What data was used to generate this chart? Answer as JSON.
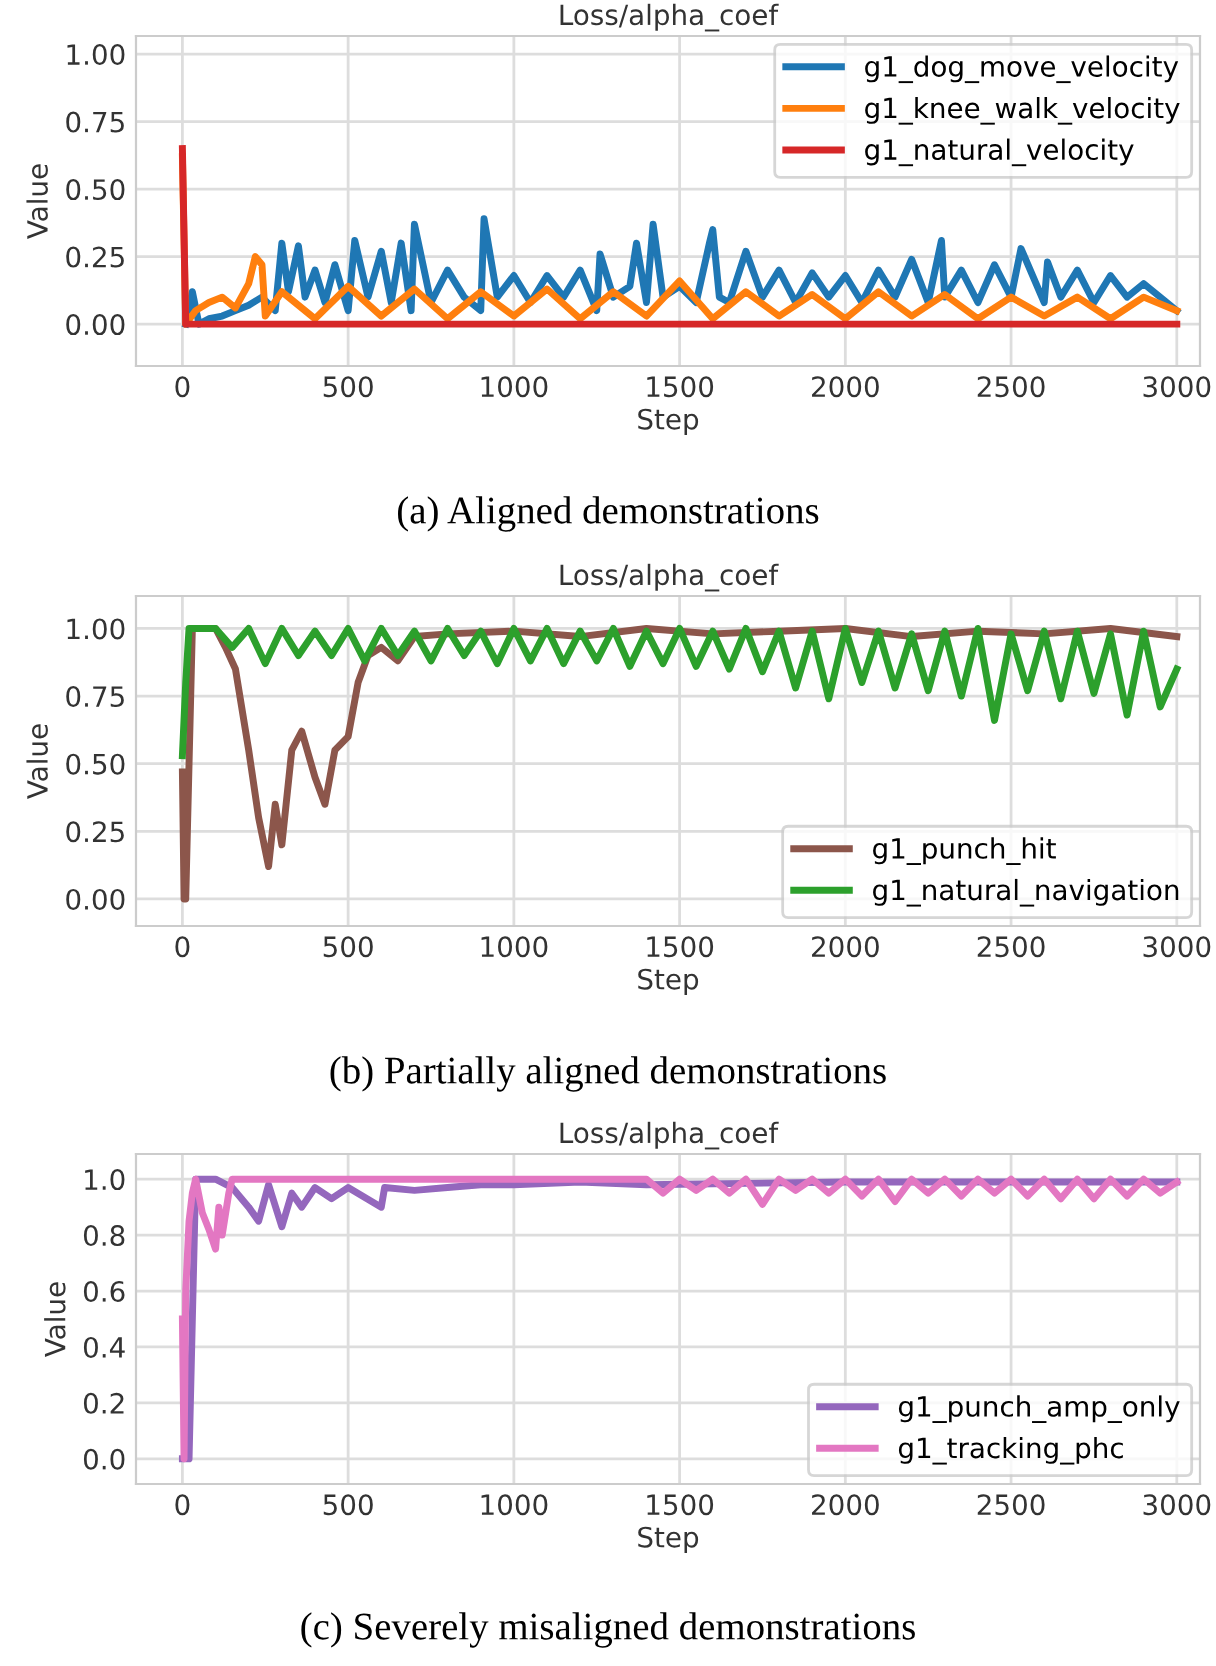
{
  "chart_data": [
    {
      "type": "line",
      "title": "Loss/alpha_coef",
      "xlabel": "Step",
      "ylabel": "Value",
      "xlim": [
        -140,
        3070
      ],
      "ylim": [
        -0.155,
        1.067
      ],
      "xticks": [
        0,
        500,
        1000,
        1500,
        2000,
        2500,
        3000
      ],
      "yticks": [
        {
          "value": 0,
          "label": "0.00"
        },
        {
          "value": 0.25,
          "label": "0.25"
        },
        {
          "value": 0.5,
          "label": "0.50"
        },
        {
          "value": 0.75,
          "label": "0.75"
        },
        {
          "value": 1,
          "label": "1.00"
        }
      ],
      "grid": true,
      "legend": "top right",
      "annotations": [
        "(a) Aligned demonstrations"
      ],
      "series": [
        {
          "name": "g1_dog_move_velocity",
          "color": "#1f77b4",
          "x": [
            10,
            30,
            50,
            80,
            120,
            160,
            200,
            240,
            280,
            300,
            320,
            350,
            370,
            400,
            430,
            460,
            500,
            520,
            560,
            600,
            630,
            660,
            690,
            700,
            750,
            800,
            850,
            900,
            910,
            950,
            1000,
            1050,
            1100,
            1150,
            1200,
            1250,
            1260,
            1300,
            1350,
            1370,
            1400,
            1420,
            1450,
            1500,
            1550,
            1590,
            1600,
            1620,
            1650,
            1700,
            1750,
            1800,
            1850,
            1900,
            1950,
            2000,
            2050,
            2100,
            2150,
            2200,
            2250,
            2290,
            2300,
            2350,
            2400,
            2450,
            2500,
            2530,
            2600,
            2610,
            2650,
            2700,
            2750,
            2800,
            2850,
            2900,
            2950,
            3000
          ],
          "values": [
            0,
            0.12,
            0,
            0.02,
            0.03,
            0.05,
            0.07,
            0.1,
            0.05,
            0.3,
            0.12,
            0.29,
            0.1,
            0.2,
            0.08,
            0.22,
            0.05,
            0.31,
            0.1,
            0.27,
            0.08,
            0.3,
            0.05,
            0.37,
            0.08,
            0.2,
            0.1,
            0.05,
            0.39,
            0.1,
            0.18,
            0.08,
            0.18,
            0.1,
            0.2,
            0.05,
            0.26,
            0.1,
            0.14,
            0.3,
            0.08,
            0.37,
            0.1,
            0.14,
            0.08,
            0.3,
            0.35,
            0.1,
            0.08,
            0.27,
            0.1,
            0.2,
            0.08,
            0.19,
            0.1,
            0.18,
            0.08,
            0.2,
            0.1,
            0.24,
            0.08,
            0.31,
            0.1,
            0.2,
            0.08,
            0.22,
            0.1,
            0.28,
            0.08,
            0.23,
            0.1,
            0.2,
            0.08,
            0.18,
            0.1,
            0.15,
            0.1,
            0.05
          ]
        },
        {
          "name": "g1_knee_walk_velocity",
          "color": "#ff7f0e",
          "x": [
            0,
            10,
            40,
            80,
            120,
            160,
            200,
            220,
            240,
            250,
            300,
            400,
            500,
            600,
            700,
            800,
            900,
            1000,
            1100,
            1200,
            1300,
            1400,
            1500,
            1600,
            1700,
            1800,
            1900,
            2000,
            2100,
            2200,
            2300,
            2400,
            2500,
            2600,
            2700,
            2800,
            2900,
            3000
          ],
          "values": [
            0.62,
            0,
            0.05,
            0.08,
            0.1,
            0.06,
            0.15,
            0.25,
            0.22,
            0.03,
            0.12,
            0.02,
            0.14,
            0.03,
            0.13,
            0.02,
            0.12,
            0.03,
            0.13,
            0.02,
            0.12,
            0.03,
            0.16,
            0.02,
            0.12,
            0.03,
            0.11,
            0.02,
            0.12,
            0.03,
            0.11,
            0.02,
            0.1,
            0.03,
            0.1,
            0.02,
            0.1,
            0.05
          ]
        },
        {
          "name": "g1_natural_velocity",
          "color": "#d62728",
          "x": [
            0,
            10,
            3000
          ],
          "values": [
            0.65,
            0,
            0
          ]
        }
      ]
    },
    {
      "type": "line",
      "title": "Loss/alpha_coef",
      "xlabel": "Step",
      "ylabel": "Value",
      "xlim": [
        -140,
        3070
      ],
      "ylim": [
        -0.1,
        1.12
      ],
      "xticks": [
        0,
        500,
        1000,
        1500,
        2000,
        2500,
        3000
      ],
      "yticks": [
        {
          "value": 0,
          "label": "0.00"
        },
        {
          "value": 0.25,
          "label": "0.25"
        },
        {
          "value": 0.5,
          "label": "0.50"
        },
        {
          "value": 0.75,
          "label": "0.75"
        },
        {
          "value": 1,
          "label": "1.00"
        }
      ],
      "grid": true,
      "legend": "bottom right",
      "annotations": [
        "(b) Partially aligned demonstrations"
      ],
      "series": [
        {
          "name": "g1_punch_hit",
          "color": "#8c564b",
          "x": [
            0,
            5,
            10,
            30,
            50,
            100,
            130,
            160,
            200,
            230,
            260,
            280,
            300,
            330,
            360,
            400,
            430,
            460,
            500,
            530,
            560,
            600,
            650,
            700,
            800,
            1000,
            1200,
            1400,
            1600,
            1800,
            2000,
            2200,
            2400,
            2600,
            2800,
            3000
          ],
          "values": [
            0.47,
            0,
            0,
            1.0,
            1.0,
            1.0,
            0.93,
            0.85,
            0.55,
            0.3,
            0.12,
            0.35,
            0.2,
            0.55,
            0.62,
            0.45,
            0.35,
            0.55,
            0.6,
            0.8,
            0.9,
            0.93,
            0.88,
            0.97,
            0.98,
            0.99,
            0.97,
            1.0,
            0.98,
            0.99,
            1.0,
            0.97,
            0.99,
            0.98,
            1.0,
            0.97
          ]
        },
        {
          "name": "g1_natural_navigation",
          "color": "#2ca02c",
          "x": [
            0,
            10,
            20,
            100,
            150,
            200,
            250,
            300,
            350,
            400,
            450,
            500,
            550,
            600,
            650,
            700,
            750,
            800,
            850,
            900,
            950,
            1000,
            1050,
            1100,
            1150,
            1200,
            1250,
            1300,
            1350,
            1400,
            1450,
            1500,
            1550,
            1600,
            1650,
            1700,
            1750,
            1800,
            1850,
            1900,
            1950,
            2000,
            2050,
            2100,
            2150,
            2200,
            2250,
            2300,
            2350,
            2400,
            2450,
            2500,
            2550,
            2600,
            2650,
            2700,
            2750,
            2800,
            2850,
            2900,
            2950,
            3000
          ],
          "values": [
            0.53,
            0.8,
            1.0,
            1.0,
            0.93,
            1.0,
            0.87,
            1.0,
            0.9,
            0.99,
            0.9,
            1.0,
            0.88,
            1.0,
            0.9,
            0.99,
            0.88,
            1.0,
            0.9,
            0.99,
            0.87,
            1.0,
            0.88,
            1.0,
            0.87,
            0.99,
            0.88,
            1.0,
            0.86,
            0.99,
            0.87,
            1.0,
            0.86,
            0.99,
            0.85,
            1.0,
            0.84,
            0.99,
            0.78,
            0.99,
            0.74,
            1.0,
            0.8,
            0.99,
            0.78,
            0.98,
            0.77,
            0.99,
            0.75,
            1.0,
            0.66,
            0.98,
            0.77,
            0.99,
            0.74,
            0.99,
            0.76,
            0.98,
            0.68,
            0.99,
            0.71,
            0.85
          ]
        }
      ]
    },
    {
      "type": "line",
      "title": "Loss/alpha_coef",
      "xlabel": "Step",
      "ylabel": "Value",
      "xlim": [
        -140,
        3070
      ],
      "ylim": [
        -0.09,
        1.09
      ],
      "xticks": [
        0,
        500,
        1000,
        1500,
        2000,
        2500,
        3000
      ],
      "yticks": [
        {
          "value": 0,
          "label": "0.0"
        },
        {
          "value": 0.2,
          "label": "0.2"
        },
        {
          "value": 0.4,
          "label": "0.4"
        },
        {
          "value": 0.6,
          "label": "0.6"
        },
        {
          "value": 0.8,
          "label": "0.8"
        },
        {
          "value": 1,
          "label": "1.0"
        }
      ],
      "grid": true,
      "legend": "bottom right",
      "annotations": [
        "(c) Severely misaligned demonstrations"
      ],
      "series": [
        {
          "name": "g1_punch_amp_only",
          "color": "#9467bd",
          "x": [
            0,
            20,
            30,
            40,
            50,
            100,
            150,
            200,
            230,
            260,
            300,
            330,
            360,
            400,
            450,
            500,
            600,
            610,
            700,
            800,
            900,
            1000,
            1200,
            1400,
            2000,
            3000
          ],
          "values": [
            0,
            0,
            0.5,
            1.0,
            1.0,
            1.0,
            0.97,
            0.9,
            0.85,
            0.98,
            0.83,
            0.95,
            0.9,
            0.97,
            0.93,
            0.97,
            0.9,
            0.97,
            0.96,
            0.97,
            0.98,
            0.98,
            0.99,
            0.98,
            0.99,
            0.99
          ]
        },
        {
          "name": "g1_tracking_phc",
          "color": "#e377c2",
          "x": [
            0,
            5,
            10,
            20,
            30,
            40,
            60,
            80,
            100,
            110,
            120,
            140,
            150,
            1400,
            1450,
            1500,
            1550,
            1600,
            1650,
            1700,
            1750,
            1800,
            1850,
            1900,
            1950,
            2000,
            2050,
            2100,
            2150,
            2200,
            2250,
            2300,
            2350,
            2400,
            2450,
            2500,
            2550,
            2600,
            2650,
            2700,
            2750,
            2800,
            2850,
            2900,
            2950,
            3000
          ],
          "values": [
            0.5,
            0,
            0.6,
            0.85,
            0.95,
            1.0,
            0.88,
            0.82,
            0.75,
            0.9,
            0.8,
            0.95,
            1.0,
            1.0,
            0.95,
            1.0,
            0.96,
            1.0,
            0.95,
            1.0,
            0.91,
            1.0,
            0.96,
            1.0,
            0.95,
            1.0,
            0.94,
            1.0,
            0.92,
            1.0,
            0.95,
            1.0,
            0.94,
            1.0,
            0.95,
            1.0,
            0.94,
            1.0,
            0.93,
            1.0,
            0.93,
            1.0,
            0.94,
            1.0,
            0.95,
            0.99
          ]
        }
      ]
    }
  ]
}
